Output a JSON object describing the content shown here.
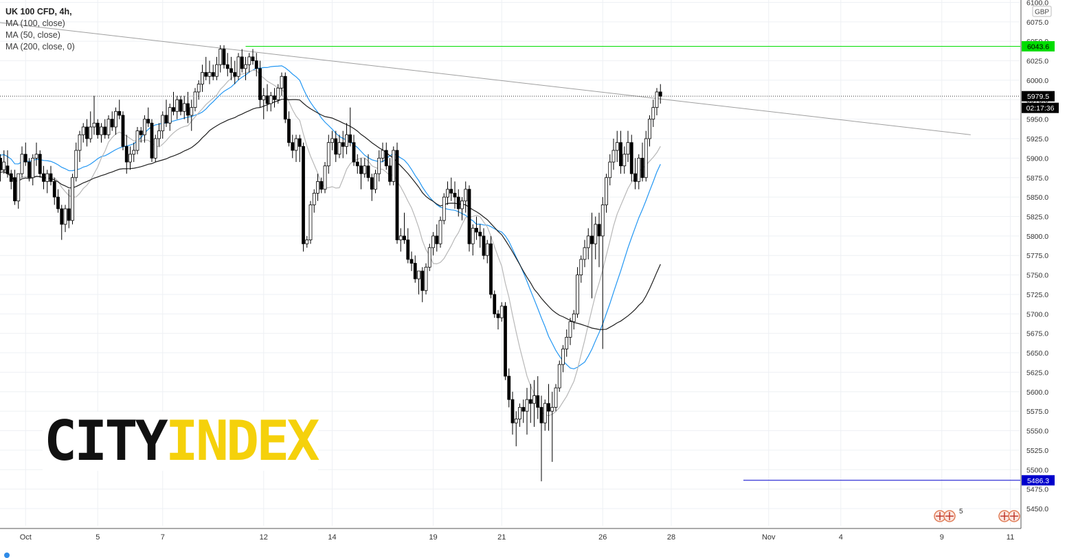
{
  "legend": {
    "symbol": "UK 100 CFD, 4h,",
    "ma100": "MA (100, close)",
    "ma50": "MA (50, close)",
    "ma200": "MA (200, close, 0)"
  },
  "currency_label": "GBP",
  "logo": {
    "part1": "CITY",
    "part2": "INDEX"
  },
  "countdown": "02:17:36",
  "event_badge_count": "5",
  "colors": {
    "up_body": "#ffffff",
    "down_body": "#000000",
    "wick": "#000000",
    "ma100": "#2196f3",
    "ma50": "#b7b7b7",
    "ma200": "#1e1e1e",
    "trendline": "#9e9e9e",
    "resistance": "#00dd00",
    "support": "#0000cc",
    "current_price_tag": "#000000",
    "grid": "#eef0f4"
  },
  "chart_data": {
    "type": "candlestick",
    "title": "UK 100 CFD, 4h",
    "ylabel": "GBP",
    "ylim": [
      5425,
      6100
    ],
    "y_ticks": [
      5450,
      5475,
      5500,
      5525,
      5550,
      5575,
      5600,
      5625,
      5650,
      5675,
      5700,
      5725,
      5750,
      5775,
      5800,
      5825,
      5850,
      5875,
      5900,
      5925,
      5950,
      5975,
      6000,
      6025,
      6050,
      6075,
      6100
    ],
    "x_tick_labels": [
      {
        "label": "Oct",
        "bar": 9
      },
      {
        "label": "5",
        "bar": 29
      },
      {
        "label": "7",
        "bar": 47
      },
      {
        "label": "12",
        "bar": 75
      },
      {
        "label": "14",
        "bar": 94
      },
      {
        "label": "19",
        "bar": 122
      },
      {
        "label": "21",
        "bar": 141
      },
      {
        "label": "26",
        "bar": 169
      },
      {
        "label": "28",
        "bar": 188
      },
      {
        "label": "Nov",
        "bar": 215
      },
      {
        "label": "4",
        "bar": 235
      },
      {
        "label": "9",
        "bar": 263
      },
      {
        "label": "11",
        "bar": 282
      }
    ],
    "grid": true,
    "reference_lines": [
      {
        "name": "resistance",
        "value": 6043.6,
        "label": "6043.6",
        "from_bar": 70
      },
      {
        "name": "support",
        "value": 5486.3,
        "label": "5486.3",
        "from_bar": 208
      },
      {
        "name": "current_price",
        "value": 5979.5,
        "label": "5979.5"
      }
    ],
    "trendline": {
      "from_bar": 0,
      "from_value": 6075,
      "to_bar": 271,
      "to_value": 5930
    },
    "candles": [
      [
        5900,
        5905,
        5880,
        5890
      ],
      [
        5890,
        5920,
        5880,
        5900
      ],
      [
        5900,
        5905,
        5870,
        5885
      ],
      [
        5885,
        5910,
        5880,
        5895
      ],
      [
        5890,
        5910,
        5875,
        5880
      ],
      [
        5880,
        5885,
        5860,
        5870
      ],
      [
        5875,
        5885,
        5840,
        5845
      ],
      [
        5845,
        5880,
        5835,
        5880
      ],
      [
        5880,
        5915,
        5875,
        5905
      ],
      [
        5905,
        5920,
        5890,
        5895
      ],
      [
        5895,
        5900,
        5870,
        5875
      ],
      [
        5875,
        5905,
        5865,
        5900
      ],
      [
        5900,
        5920,
        5890,
        5905
      ],
      [
        5905,
        5910,
        5875,
        5880
      ],
      [
        5880,
        5890,
        5860,
        5870
      ],
      [
        5870,
        5885,
        5855,
        5880
      ],
      [
        5880,
        5890,
        5865,
        5870
      ],
      [
        5870,
        5875,
        5840,
        5850
      ],
      [
        5850,
        5860,
        5830,
        5835
      ],
      [
        5835,
        5840,
        5795,
        5815
      ],
      [
        5815,
        5840,
        5805,
        5835
      ],
      [
        5835,
        5860,
        5810,
        5820
      ],
      [
        5820,
        5880,
        5815,
        5875
      ],
      [
        5875,
        5920,
        5870,
        5910
      ],
      [
        5910,
        5935,
        5895,
        5930
      ],
      [
        5930,
        5945,
        5920,
        5940
      ],
      [
        5940,
        5950,
        5915,
        5925
      ],
      [
        5925,
        5960,
        5920,
        5940
      ],
      [
        5940,
        5980,
        5930,
        5945
      ],
      [
        5945,
        5950,
        5925,
        5930
      ],
      [
        5930,
        5945,
        5920,
        5940
      ],
      [
        5940,
        5950,
        5925,
        5930
      ],
      [
        5930,
        5955,
        5925,
        5950
      ],
      [
        5950,
        5960,
        5935,
        5940
      ],
      [
        5940,
        5965,
        5930,
        5960
      ],
      [
        5960,
        5975,
        5950,
        5955
      ],
      [
        5955,
        5960,
        5910,
        5915
      ],
      [
        5915,
        5930,
        5880,
        5895
      ],
      [
        5895,
        5915,
        5885,
        5905
      ],
      [
        5905,
        5920,
        5895,
        5910
      ],
      [
        5910,
        5940,
        5905,
        5935
      ],
      [
        5935,
        5940,
        5920,
        5930
      ],
      [
        5930,
        5955,
        5920,
        5950
      ],
      [
        5950,
        5965,
        5940,
        5945
      ],
      [
        5945,
        5950,
        5895,
        5900
      ],
      [
        5900,
        5930,
        5895,
        5925
      ],
      [
        5925,
        5945,
        5915,
        5935
      ],
      [
        5935,
        5960,
        5925,
        5955
      ],
      [
        5955,
        5975,
        5940,
        5945
      ],
      [
        5945,
        5970,
        5935,
        5965
      ],
      [
        5965,
        5985,
        5955,
        5960
      ],
      [
        5960,
        5980,
        5950,
        5975
      ],
      [
        5975,
        5980,
        5955,
        5960
      ],
      [
        5960,
        5980,
        5950,
        5970
      ],
      [
        5970,
        5985,
        5945,
        5955
      ],
      [
        5955,
        5975,
        5935,
        5965
      ],
      [
        5965,
        5990,
        5960,
        5985
      ],
      [
        5985,
        6000,
        5975,
        5995
      ],
      [
        5995,
        6020,
        5985,
        6010
      ],
      [
        6010,
        6030,
        6000,
        6005
      ],
      [
        6005,
        6025,
        5995,
        6010
      ],
      [
        6010,
        6020,
        6000,
        6005
      ],
      [
        6005,
        6030,
        6000,
        6020
      ],
      [
        6020,
        6045,
        6010,
        6040
      ],
      [
        6040,
        6045,
        6015,
        6020
      ],
      [
        6020,
        6035,
        6005,
        6015
      ],
      [
        6015,
        6030,
        6000,
        6010
      ],
      [
        6010,
        6025,
        5995,
        6005
      ],
      [
        6005,
        6035,
        6000,
        6030
      ],
      [
        6030,
        6040,
        6010,
        6015
      ],
      [
        6015,
        6030,
        6000,
        6020
      ],
      [
        6020,
        6035,
        6010,
        6030
      ],
      [
        6030,
        6040,
        6020,
        6025
      ],
      [
        6025,
        6035,
        6005,
        6015
      ],
      [
        6015,
        6025,
        5965,
        5975
      ],
      [
        5975,
        5990,
        5950,
        5980
      ],
      [
        5980,
        5995,
        5960,
        5970
      ],
      [
        5970,
        5985,
        5960,
        5980
      ],
      [
        5980,
        5990,
        5965,
        5975
      ],
      [
        5975,
        5995,
        5970,
        5990
      ],
      [
        5990,
        6010,
        5980,
        6005
      ],
      [
        6005,
        6010,
        5945,
        5950
      ],
      [
        5950,
        5960,
        5915,
        5920
      ],
      [
        5920,
        5930,
        5900,
        5910
      ],
      [
        5910,
        5930,
        5895,
        5925
      ],
      [
        5925,
        5930,
        5895,
        5915
      ],
      [
        5915,
        5920,
        5780,
        5790
      ],
      [
        5790,
        5800,
        5785,
        5795
      ],
      [
        5795,
        5845,
        5790,
        5840
      ],
      [
        5840,
        5860,
        5830,
        5855
      ],
      [
        5855,
        5880,
        5845,
        5870
      ],
      [
        5870,
        5875,
        5855,
        5860
      ],
      [
        5860,
        5895,
        5855,
        5890
      ],
      [
        5890,
        5930,
        5880,
        5920
      ],
      [
        5920,
        5935,
        5910,
        5925
      ],
      [
        5925,
        5935,
        5895,
        5905
      ],
      [
        5905,
        5930,
        5900,
        5920
      ],
      [
        5920,
        5935,
        5900,
        5915
      ],
      [
        5915,
        5945,
        5905,
        5930
      ],
      [
        5930,
        5965,
        5915,
        5920
      ],
      [
        5920,
        5930,
        5890,
        5895
      ],
      [
        5895,
        5905,
        5880,
        5890
      ],
      [
        5890,
        5900,
        5860,
        5880
      ],
      [
        5880,
        5900,
        5875,
        5890
      ],
      [
        5890,
        5905,
        5870,
        5875
      ],
      [
        5875,
        5880,
        5845,
        5860
      ],
      [
        5860,
        5885,
        5855,
        5880
      ],
      [
        5880,
        5910,
        5870,
        5900
      ],
      [
        5900,
        5920,
        5895,
        5910
      ],
      [
        5910,
        5920,
        5885,
        5890
      ],
      [
        5890,
        5900,
        5865,
        5870
      ],
      [
        5870,
        5915,
        5865,
        5910
      ],
      [
        5910,
        5920,
        5790,
        5795
      ],
      [
        5795,
        5810,
        5780,
        5800
      ],
      [
        5800,
        5830,
        5790,
        5795
      ],
      [
        5795,
        5810,
        5765,
        5770
      ],
      [
        5770,
        5780,
        5755,
        5765
      ],
      [
        5765,
        5775,
        5740,
        5745
      ],
      [
        5745,
        5750,
        5725,
        5755
      ],
      [
        5755,
        5760,
        5715,
        5730
      ],
      [
        5730,
        5765,
        5725,
        5760
      ],
      [
        5760,
        5790,
        5755,
        5785
      ],
      [
        5785,
        5805,
        5775,
        5800
      ],
      [
        5800,
        5815,
        5780,
        5790
      ],
      [
        5790,
        5825,
        5785,
        5820
      ],
      [
        5820,
        5855,
        5815,
        5850
      ],
      [
        5850,
        5870,
        5840,
        5860
      ],
      [
        5860,
        5875,
        5845,
        5855
      ],
      [
        5855,
        5870,
        5835,
        5850
      ],
      [
        5850,
        5860,
        5825,
        5835
      ],
      [
        5835,
        5850,
        5820,
        5845
      ],
      [
        5845,
        5870,
        5830,
        5860
      ],
      [
        5860,
        5865,
        5780,
        5790
      ],
      [
        5790,
        5815,
        5775,
        5810
      ],
      [
        5810,
        5825,
        5795,
        5805
      ],
      [
        5805,
        5815,
        5785,
        5800
      ],
      [
        5800,
        5810,
        5770,
        5775
      ],
      [
        5775,
        5795,
        5765,
        5790
      ],
      [
        5790,
        5800,
        5720,
        5725
      ],
      [
        5725,
        5730,
        5695,
        5700
      ],
      [
        5700,
        5705,
        5680,
        5695
      ],
      [
        5695,
        5715,
        5690,
        5710
      ],
      [
        5710,
        5715,
        5615,
        5620
      ],
      [
        5620,
        5630,
        5580,
        5590
      ],
      [
        5590,
        5600,
        5545,
        5560
      ],
      [
        5560,
        5575,
        5530,
        5565
      ],
      [
        5565,
        5585,
        5555,
        5580
      ],
      [
        5580,
        5590,
        5560,
        5575
      ],
      [
        5575,
        5605,
        5545,
        5590
      ],
      [
        5590,
        5610,
        5560,
        5585
      ],
      [
        5585,
        5615,
        5555,
        5595
      ],
      [
        5595,
        5620,
        5565,
        5580
      ],
      [
        5580,
        5595,
        5485,
        5560
      ],
      [
        5560,
        5590,
        5550,
        5585
      ],
      [
        5585,
        5610,
        5550,
        5575
      ],
      [
        5575,
        5600,
        5510,
        5580
      ],
      [
        5580,
        5610,
        5575,
        5605
      ],
      [
        5605,
        5640,
        5600,
        5635
      ],
      [
        5635,
        5660,
        5625,
        5655
      ],
      [
        5655,
        5680,
        5645,
        5670
      ],
      [
        5670,
        5695,
        5660,
        5690
      ],
      [
        5690,
        5705,
        5680,
        5700
      ],
      [
        5700,
        5760,
        5695,
        5750
      ],
      [
        5750,
        5775,
        5740,
        5770
      ],
      [
        5770,
        5795,
        5760,
        5785
      ],
      [
        5785,
        5810,
        5770,
        5800
      ],
      [
        5800,
        5830,
        5720,
        5790
      ],
      [
        5790,
        5825,
        5770,
        5815
      ],
      [
        5815,
        5830,
        5760,
        5800
      ],
      [
        5800,
        5850,
        5655,
        5840
      ],
      [
        5840,
        5880,
        5830,
        5875
      ],
      [
        5875,
        5905,
        5865,
        5895
      ],
      [
        5895,
        5925,
        5885,
        5910
      ],
      [
        5910,
        5935,
        5895,
        5920
      ],
      [
        5920,
        5935,
        5880,
        5890
      ],
      [
        5890,
        5915,
        5880,
        5905
      ],
      [
        5905,
        5935,
        5895,
        5920
      ],
      [
        5920,
        5930,
        5870,
        5880
      ],
      [
        5880,
        5900,
        5860,
        5870
      ],
      [
        5870,
        5905,
        5860,
        5900
      ],
      [
        5900,
        5920,
        5870,
        5875
      ],
      [
        5875,
        5935,
        5870,
        5925
      ],
      [
        5925,
        5955,
        5915,
        5950
      ],
      [
        5950,
        5975,
        5940,
        5965
      ],
      [
        5965,
        5990,
        5955,
        5985
      ],
      [
        5985,
        5995,
        5970,
        5979.5
      ]
    ],
    "moving_averages": [
      {
        "name": "MA (100, close)",
        "period": 100,
        "color": "#2196f3"
      },
      {
        "name": "MA (50, close)",
        "period": 50,
        "color": "#b7b7b7"
      },
      {
        "name": "MA (200, close, 0)",
        "period": 200,
        "color": "#1e1e1e"
      }
    ]
  }
}
